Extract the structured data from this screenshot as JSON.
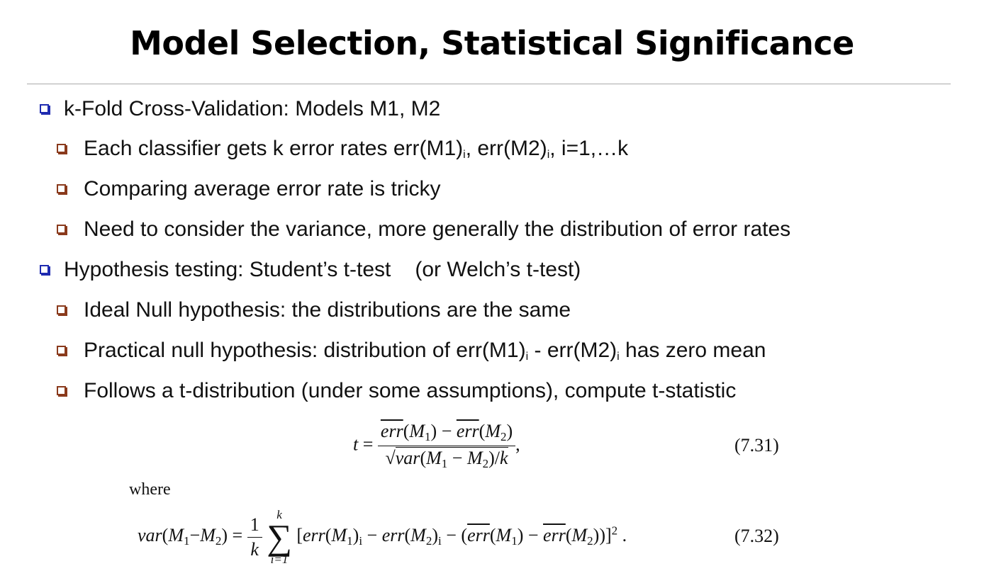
{
  "title": "Model Selection, Statistical Significance",
  "bullets": [
    {
      "level": 1,
      "text": "k-Fold Cross-Validation: Models M1, M2"
    },
    {
      "level": 2,
      "text_a": "Each classifier gets k error rates err(M1)",
      "sub_a": "i",
      "text_b": ", err(M2)",
      "sub_b": "i",
      "text_c": ", i=1,…k"
    },
    {
      "level": 2,
      "text": "Comparing average error rate is tricky"
    },
    {
      "level": 2,
      "text": "Need to consider the variance, more generally the distribution of error rates"
    },
    {
      "level": 1,
      "text_a": "Hypothesis testing: Student’s t-test",
      "text_b": "(or Welch’s t-test)"
    },
    {
      "level": 2,
      "text": "Ideal Null hypothesis: the distributions are the same"
    },
    {
      "level": 2,
      "text_a": "Practical null hypothesis: distribution of err(M1)",
      "sub_a": "i",
      "text_b": " - err(M2)",
      "sub_b": "i",
      "text_c": " has zero mean"
    },
    {
      "level": 2,
      "text": "Follows a t-distribution (under some assumptions), compute t-statistic"
    }
  ],
  "equations": {
    "eq1_number": "(7.31)",
    "where_label": "where",
    "eq2_number": "(7.32)"
  },
  "colors": {
    "level1_bullet": "#1f2bb0",
    "level2_bullet": "#8a3a1c"
  }
}
